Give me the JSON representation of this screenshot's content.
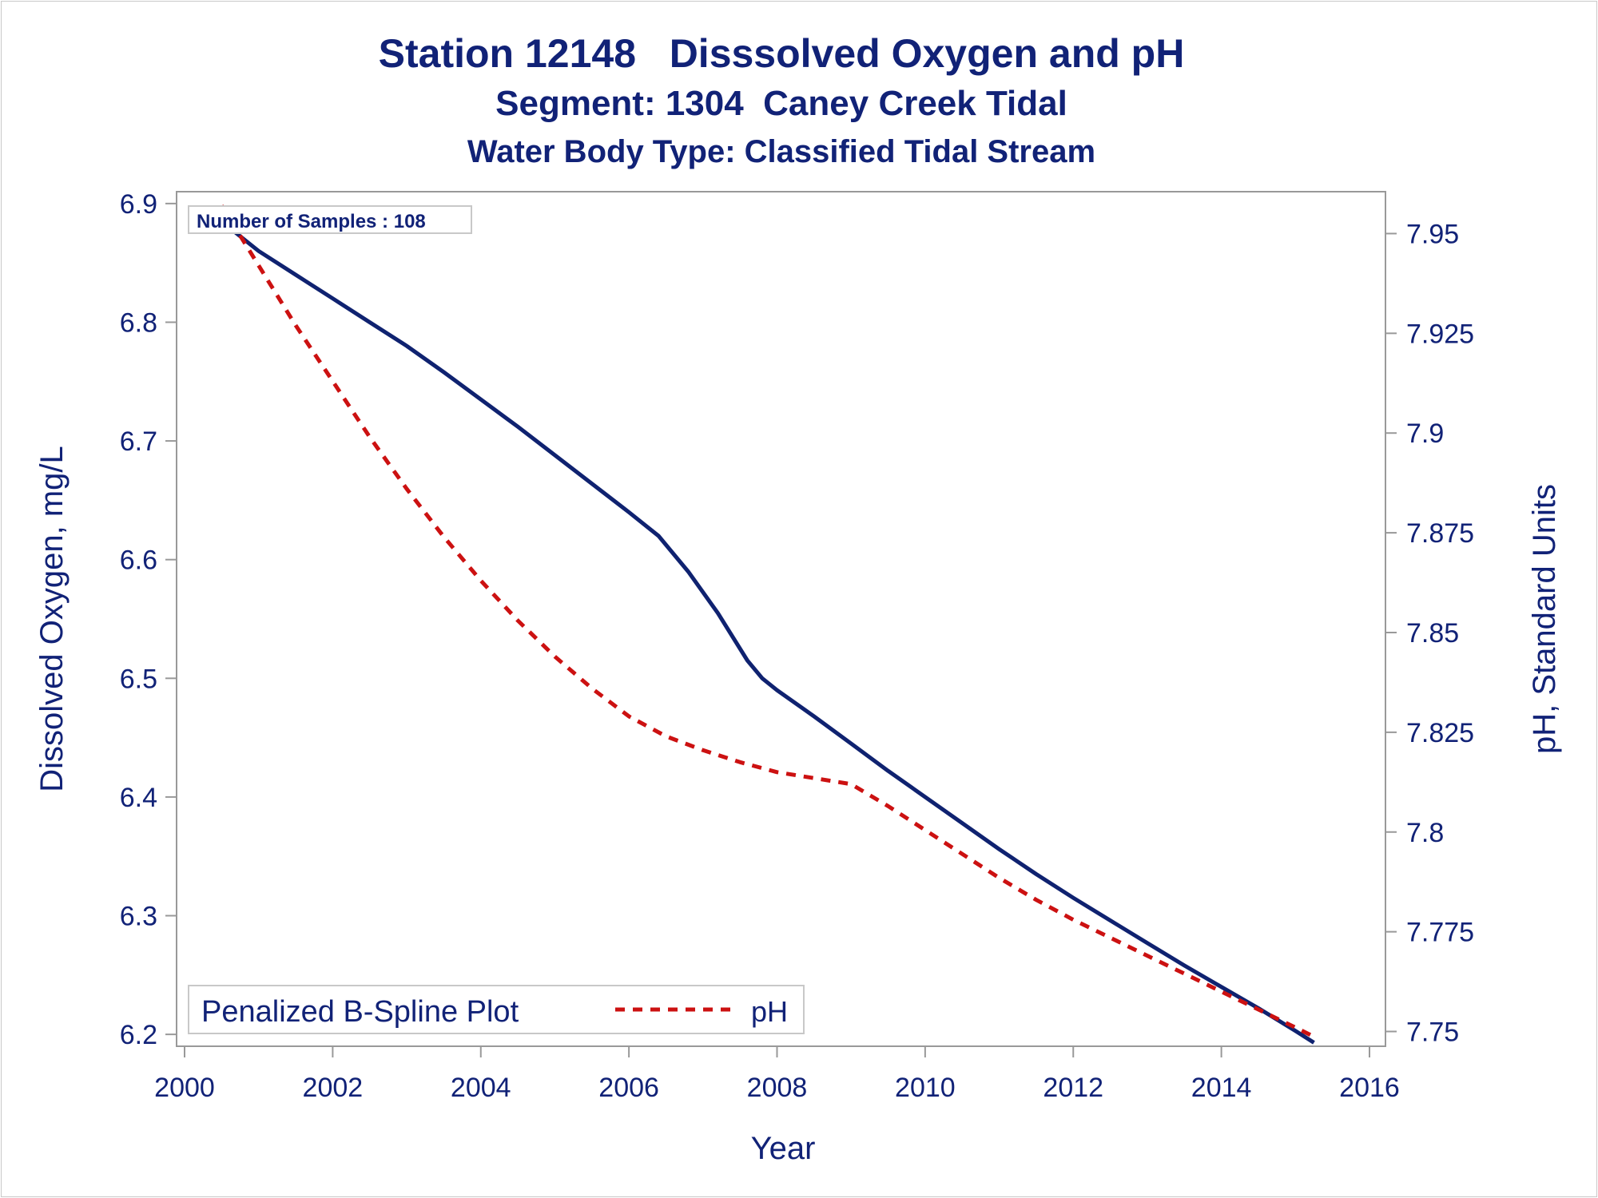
{
  "title": "Station 12148   Disssolved Oxygen and pH",
  "subtitle1": "Segment: 1304  Caney Creek Tidal",
  "subtitle2": "Water Body Type: Classified Tidal Stream",
  "colors": {
    "text": "#112277",
    "do_line": "#0f2270",
    "ph_line": "#cc1111",
    "axis": "#999999",
    "frame": "#c8c8c8"
  },
  "chart_data": {
    "type": "line",
    "title": "Station 12148   Disssolved Oxygen and pH",
    "subtitles": [
      "Segment: 1304  Caney Creek Tidal",
      "Water Body Type: Classified Tidal Stream"
    ],
    "xlabel": "Year",
    "ylabel": "Dissolved Oxygen, mg/L",
    "y2label": "pH, Standard Units",
    "xlim": [
      2000,
      2016
    ],
    "ylim": [
      6.19,
      6.91
    ],
    "y2lim": [
      7.7463,
      7.9605
    ],
    "x_ticks": [
      "2000",
      "2002",
      "2004",
      "2006",
      "2008",
      "2010",
      "2012",
      "2014",
      "2016"
    ],
    "y_ticks": [
      "6.2",
      "6.3",
      "6.4",
      "6.5",
      "6.6",
      "6.7",
      "6.8",
      "6.9"
    ],
    "y2_ticks": [
      "7.75",
      "7.775",
      "7.8",
      "7.825",
      "7.85",
      "7.875",
      "7.9",
      "7.925",
      "7.95"
    ],
    "grid": false,
    "legend_position": "bottom-left",
    "annotation": "Number of Samples : 108",
    "legend": {
      "title": "Penalized B-Spline Plot",
      "entry": "pH"
    },
    "series": [
      {
        "axis": "left",
        "style": "solid",
        "color": "#0f2270",
        "points": [
          [
            2000.5,
            6.885
          ],
          [
            2001.0,
            6.86
          ],
          [
            2001.5,
            6.84
          ],
          [
            2002.0,
            6.82
          ],
          [
            2002.5,
            6.8
          ],
          [
            2003.0,
            6.78
          ],
          [
            2003.5,
            6.758
          ],
          [
            2004.0,
            6.735
          ],
          [
            2004.5,
            6.712
          ],
          [
            2005.0,
            6.688
          ],
          [
            2005.5,
            6.664
          ],
          [
            2006.0,
            6.64
          ],
          [
            2006.4,
            6.62
          ],
          [
            2006.8,
            6.59
          ],
          [
            2007.2,
            6.555
          ],
          [
            2007.6,
            6.515
          ],
          [
            2007.8,
            6.5
          ],
          [
            2008.0,
            6.49
          ],
          [
            2008.5,
            6.468
          ],
          [
            2009.0,
            6.445
          ],
          [
            2009.5,
            6.422
          ],
          [
            2010.0,
            6.4
          ],
          [
            2010.5,
            6.378
          ],
          [
            2011.0,
            6.356
          ],
          [
            2011.5,
            6.335
          ],
          [
            2012.0,
            6.315
          ],
          [
            2012.5,
            6.296
          ],
          [
            2013.0,
            6.277
          ],
          [
            2013.5,
            6.258
          ],
          [
            2014.0,
            6.24
          ],
          [
            2014.5,
            6.222
          ],
          [
            2015.0,
            6.203
          ],
          [
            2015.25,
            6.193
          ]
        ]
      },
      {
        "name": "pH",
        "axis": "right",
        "style": "dashed",
        "color": "#cc1111",
        "points": [
          [
            2000.5,
            7.957
          ],
          [
            2001.0,
            7.942
          ],
          [
            2001.5,
            7.927
          ],
          [
            2002.0,
            7.913
          ],
          [
            2002.5,
            7.899
          ],
          [
            2003.0,
            7.886
          ],
          [
            2003.5,
            7.874
          ],
          [
            2004.0,
            7.863
          ],
          [
            2004.5,
            7.853
          ],
          [
            2005.0,
            7.844
          ],
          [
            2005.5,
            7.836
          ],
          [
            2006.0,
            7.829
          ],
          [
            2006.5,
            7.824
          ],
          [
            2007.0,
            7.8205
          ],
          [
            2007.5,
            7.8175
          ],
          [
            2008.0,
            7.815
          ],
          [
            2008.5,
            7.8135
          ],
          [
            2009.0,
            7.812
          ],
          [
            2009.5,
            7.8065
          ],
          [
            2010.0,
            7.8005
          ],
          [
            2010.5,
            7.7945
          ],
          [
            2011.0,
            7.7885
          ],
          [
            2011.5,
            7.783
          ],
          [
            2012.0,
            7.778
          ],
          [
            2012.5,
            7.7735
          ],
          [
            2013.0,
            7.769
          ],
          [
            2013.5,
            7.7645
          ],
          [
            2014.0,
            7.76
          ],
          [
            2014.5,
            7.7555
          ],
          [
            2015.0,
            7.751
          ],
          [
            2015.25,
            7.7487
          ]
        ]
      }
    ]
  }
}
